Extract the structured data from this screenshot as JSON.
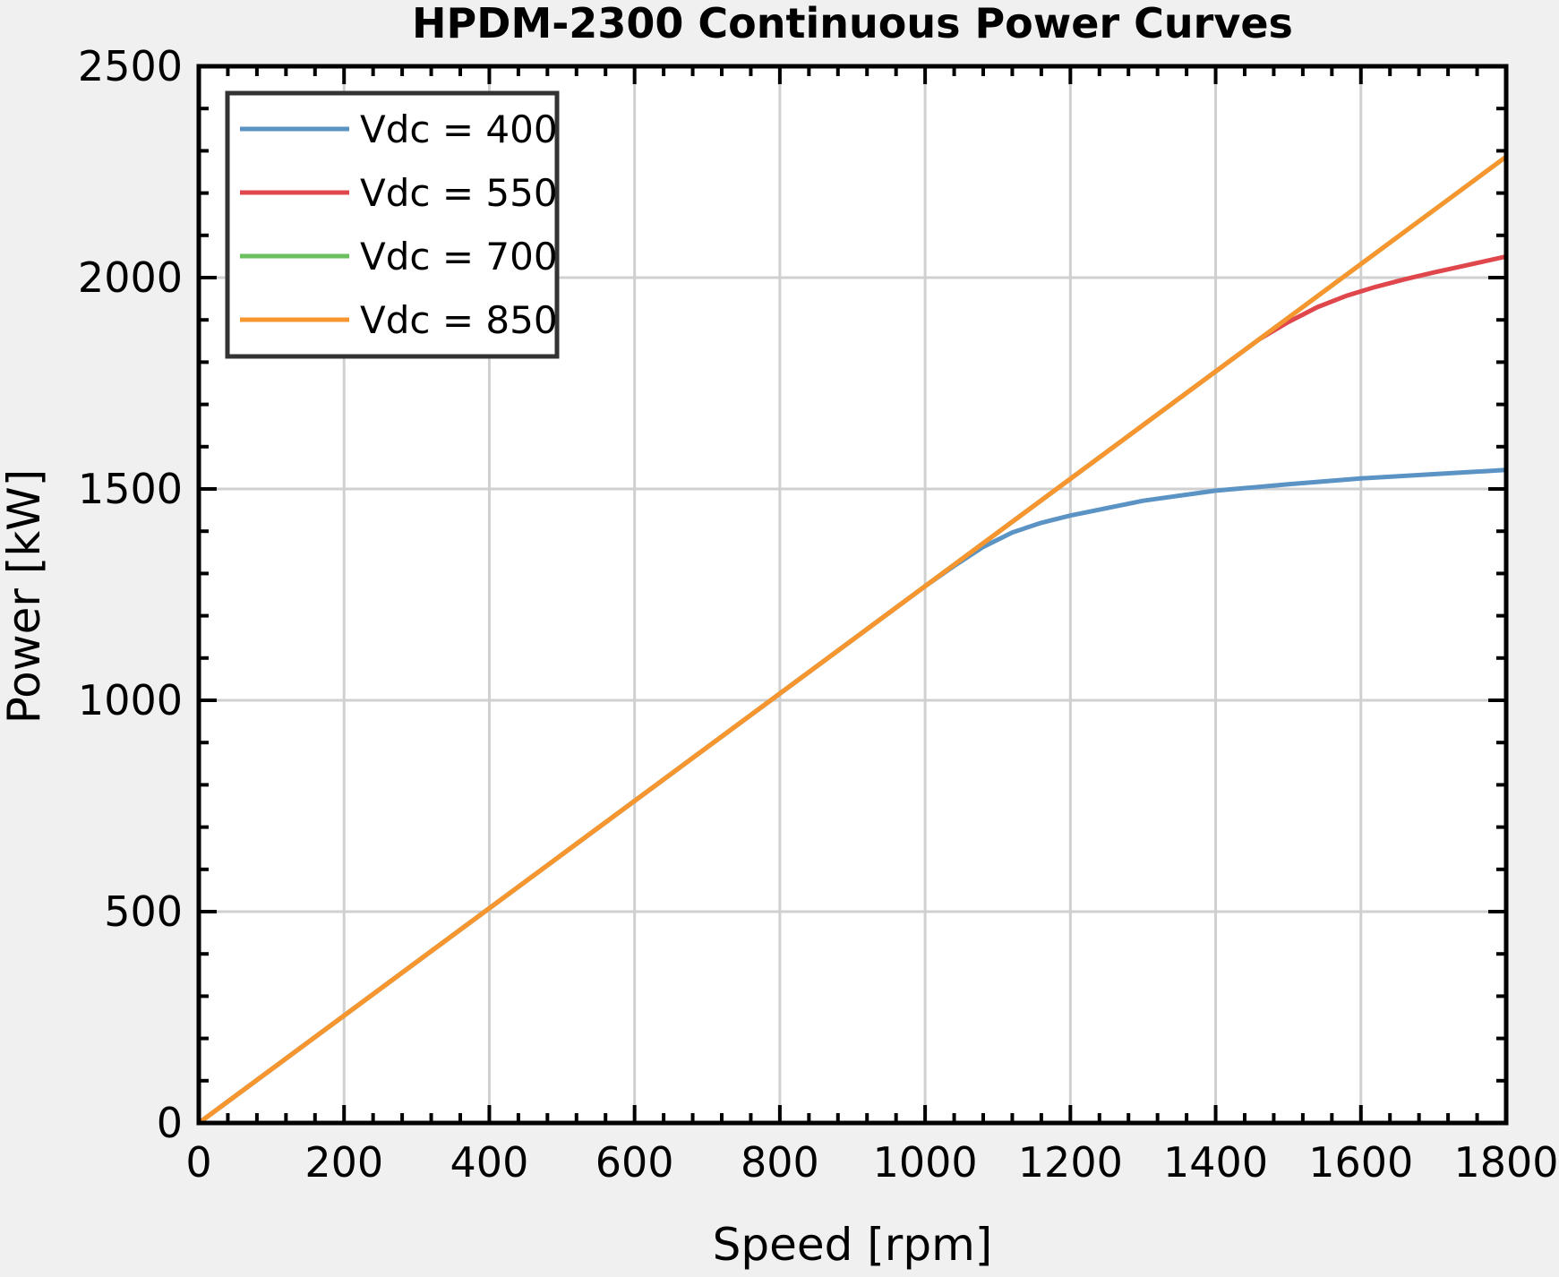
{
  "chart_data": {
    "type": "line",
    "title": "HPDM-2300 Continuous Power Curves",
    "xlabel": "Speed [rpm]",
    "ylabel": "Power [kW]",
    "xlim": [
      0,
      1800
    ],
    "ylim": [
      0,
      2500
    ],
    "xticks": [
      0,
      200,
      400,
      600,
      800,
      1000,
      1200,
      1400,
      1600,
      1800
    ],
    "yticks": [
      0,
      500,
      1000,
      1500,
      2000,
      2500
    ],
    "xtick_labels": [
      "0",
      "200",
      "400",
      "600",
      "800",
      "1000",
      "1200",
      "1400",
      "1600",
      "1800"
    ],
    "ytick_labels": [
      "0",
      "500",
      "1000",
      "1500",
      "2000",
      "2500"
    ],
    "grid": true,
    "legend_position": "top-left",
    "series": [
      {
        "name": "Vdc = 400",
        "color": "#5b93c5",
        "x": [
          0,
          1000,
          1040,
          1080,
          1120,
          1160,
          1200,
          1300,
          1400,
          1500,
          1600,
          1700,
          1800
        ],
        "y": [
          0,
          1270,
          1318,
          1363,
          1397,
          1420,
          1437,
          1472,
          1496,
          1511,
          1525,
          1535,
          1545
        ]
      },
      {
        "name": "Vdc = 550",
        "color": "#e0474c",
        "x": [
          0,
          1400,
          1460,
          1500,
          1540,
          1580,
          1620,
          1660,
          1700,
          1750,
          1800
        ],
        "y": [
          0,
          1778,
          1854,
          1895,
          1930,
          1957,
          1978,
          1996,
          2012,
          2031,
          2050
        ]
      },
      {
        "name": "Vdc = 700",
        "color": "#6cbf5f",
        "x": [
          0,
          1800
        ],
        "y": [
          0,
          2286
        ]
      },
      {
        "name": "Vdc = 850",
        "color": "#f7962f",
        "x": [
          0,
          1800
        ],
        "y": [
          0,
          2286
        ]
      }
    ]
  }
}
